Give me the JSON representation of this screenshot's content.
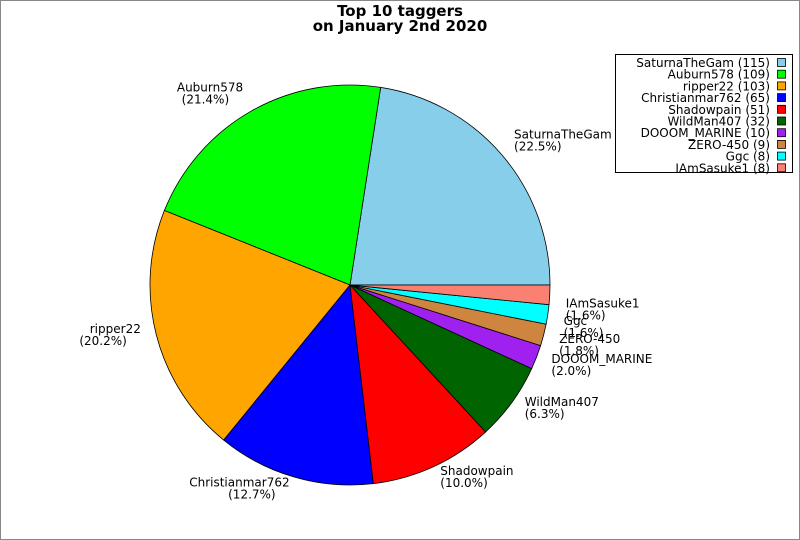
{
  "chart_data": {
    "type": "pie",
    "title": "Top 10 taggers",
    "subtitle": "on January 2nd 2020",
    "categories": [
      "SaturnaTheGam",
      "Auburn578",
      "ripper22",
      "Christianmar762",
      "Shadowpain",
      "WildMan407",
      "DOOOM_MARINE",
      "ZERO-450",
      "Ggc",
      "IAmSasuke1"
    ],
    "values": [
      115,
      109,
      103,
      65,
      51,
      32,
      10,
      9,
      8,
      8
    ],
    "percent_labels": [
      "(22.5%)",
      "(21.4%)",
      "(20.2%)",
      "(12.7%)",
      "(10.0%)",
      "(6.3%)",
      "(2.0%)",
      "(1.8%)",
      "(1.6%)",
      "(1.6%)"
    ],
    "legend_labels": [
      "SaturnaTheGam (115)",
      "Auburn578 (109)",
      "ripper22 (103)",
      "Christianmar762 (65)",
      "Shadowpain (51)",
      "WildMan407 (32)",
      "DOOOM_MARINE (10)",
      "ZERO-450 (9)",
      "Ggc (8)",
      "IAmSasuke1 (8)"
    ],
    "colors": [
      "#87ceeb",
      "#00ff00",
      "#ffa500",
      "#0000ff",
      "#ff0000",
      "#006400",
      "#a020f0",
      "#cd853f",
      "#00ffff",
      "#fa8072"
    ],
    "legend_position": "upper right"
  }
}
